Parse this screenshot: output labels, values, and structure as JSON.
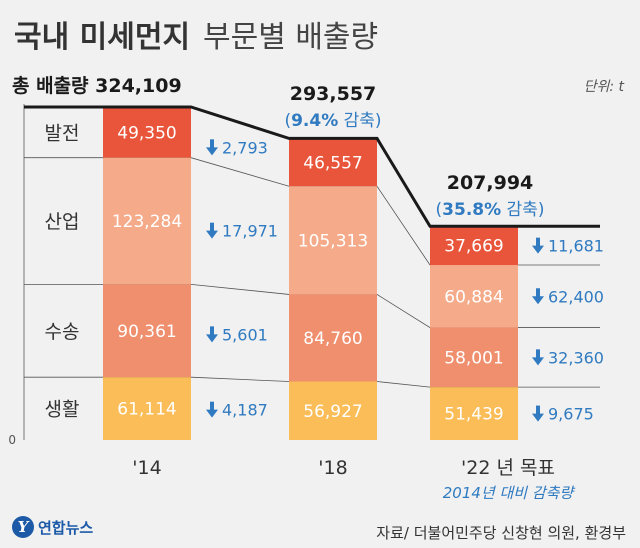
{
  "title": "국내 미세먼지",
  "subtitle": "부문별 배출량",
  "unit": "단위: t",
  "source": "자료/ 더불어민주당 신창현 의원, 환경부",
  "logo_text": "연합뉴스",
  "logo_mark": "Y",
  "colors": {
    "발전": "#e8553a",
    "산업": "#f5ab8a",
    "수송": "#ef8f6d",
    "생활": "#fbbd58",
    "arrow": "#2f7ac0",
    "text_dark": "#333333"
  },
  "chart_data": {
    "type": "bar",
    "stacked": true,
    "categories": [
      "'14",
      "'18",
      "'22 년 목표"
    ],
    "x_sub_label": "2014년 대비 감축량",
    "y_zero_label": "0",
    "series": [
      {
        "name": "발전",
        "values": [
          49350,
          46557,
          37669
        ],
        "changes": [
          "2,793",
          "11,681"
        ]
      },
      {
        "name": "산업",
        "values": [
          123284,
          105313,
          60884
        ],
        "changes": [
          "17,971",
          "62,400"
        ]
      },
      {
        "name": "수송",
        "values": [
          90361,
          84760,
          58001
        ],
        "changes": [
          "5,601",
          "32,360"
        ]
      },
      {
        "name": "생활",
        "values": [
          61114,
          56927,
          51439
        ],
        "changes": [
          "4,187",
          "9,675"
        ]
      }
    ],
    "value_labels": [
      [
        "49,350",
        "123,284",
        "90,361",
        "61,114"
      ],
      [
        "46,557",
        "105,313",
        "84,760",
        "56,927"
      ],
      [
        "37,669",
        "60,884",
        "58,001",
        "51,439"
      ]
    ],
    "totals": [
      {
        "text": "총 배출량 324,109",
        "pct": ""
      },
      {
        "text": "293,557",
        "pct": "9.4%",
        "pct_suffix": "감축"
      },
      {
        "text": "207,994",
        "pct": "35.8%",
        "pct_suffix": "감축"
      }
    ]
  }
}
